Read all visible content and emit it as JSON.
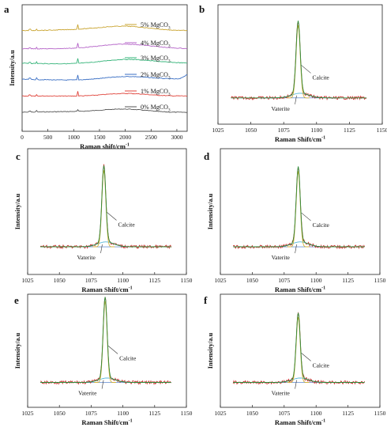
{
  "chart_data": [
    {
      "panel": "a",
      "type": "line",
      "xlabel": "Raman shift/cm",
      "xlabel_sup": "-1",
      "ylabel": "Intensity/a.u",
      "xlim": [
        0,
        3200
      ],
      "xticks": [
        0,
        500,
        1000,
        1500,
        2000,
        2500,
        3000
      ],
      "series": [
        {
          "name": "0% MgCO3",
          "label_main": "0% MgCO",
          "label_sub": "3",
          "color": "#555555"
        },
        {
          "name": "1% MgCO3",
          "label_main": "1% MgCO",
          "label_sub": "3",
          "color": "#e0453c"
        },
        {
          "name": "2% MgCO3",
          "label_main": "2% MgCO",
          "label_sub": "3",
          "color": "#3a6fc4"
        },
        {
          "name": "3% MgCO3",
          "label_main": "3% MgCO",
          "label_sub": "3",
          "color": "#36b47a"
        },
        {
          "name": "4% MgCO3",
          "label_main": "4% MgCO",
          "label_sub": "3",
          "color": "#b565c8"
        },
        {
          "name": "5% MgCO3",
          "label_main": "5% MgCO",
          "label_sub": "3",
          "color": "#c9a430"
        }
      ]
    },
    {
      "panel": "b",
      "type": "line",
      "xlabel": "Raman Shift/cm",
      "xlabel_sup": "-1",
      "xlim": [
        1025,
        1150
      ],
      "xticks": [
        1025,
        1050,
        1075,
        1100,
        1125,
        1150
      ],
      "peak_x": 1086,
      "peak_height": 0.78,
      "annotations": [
        "Calcite",
        "Vaterite"
      ]
    },
    {
      "panel": "c",
      "type": "line",
      "xlabel": "Raman Shift/cm",
      "xlabel_sup": "-1",
      "ylabel": "Intensity/a.u",
      "xlim": [
        1025,
        1150
      ],
      "xticks": [
        1025,
        1050,
        1075,
        1100,
        1125,
        1150
      ],
      "peak_x": 1085,
      "peak_height": 0.78,
      "annotations": [
        "Calcite",
        "Vaterite"
      ]
    },
    {
      "panel": "d",
      "type": "line",
      "xlabel": "Raman Shift/cm",
      "xlabel_sup": "-1",
      "ylabel": "Intensity/a.u",
      "xlim": [
        1025,
        1150
      ],
      "xticks": [
        1025,
        1050,
        1075,
        1100,
        1125,
        1150
      ],
      "peak_x": 1086,
      "peak_height": 0.77,
      "annotations": [
        "Calcite",
        "Vaterite"
      ]
    },
    {
      "panel": "e",
      "type": "line",
      "xlabel": "Raman Shift/cm",
      "xlabel_sup": "-1",
      "ylabel": "Intensity/a.u",
      "xlim": [
        1025,
        1150
      ],
      "xticks": [
        1025,
        1050,
        1075,
        1100,
        1125,
        1150
      ],
      "peak_x": 1086,
      "peak_height": 0.92,
      "annotations": [
        "Calcite",
        "Vaterite"
      ]
    },
    {
      "panel": "f",
      "type": "line",
      "xlabel": "Raman Shift/cm",
      "xlabel_sup": "-1",
      "ylabel": "Intensity/a.u",
      "xlim": [
        1025,
        1150
      ],
      "xticks": [
        1025,
        1050,
        1075,
        1100,
        1125,
        1150
      ],
      "peak_x": 1086,
      "peak_height": 0.74,
      "annotations": [
        "Calcite",
        "Vaterite"
      ]
    }
  ]
}
